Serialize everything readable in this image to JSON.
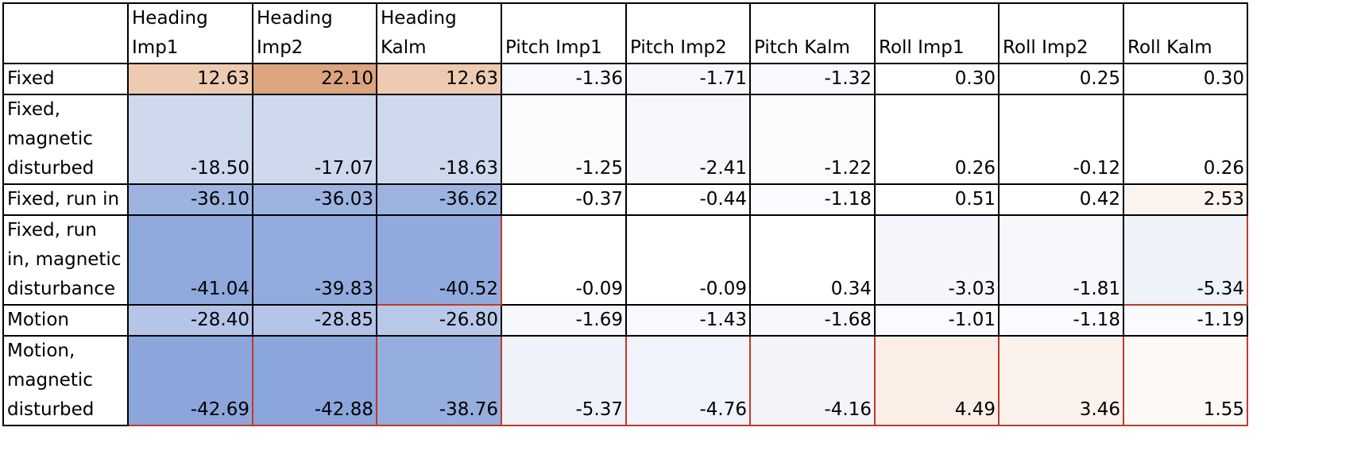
{
  "table": {
    "corner": "",
    "headers": [
      "Heading\nImp1",
      "Heading\nImp2",
      "Heading\nKalm",
      "Pitch Imp1",
      "Pitch Imp2",
      "Pitch Kalm",
      "Roll Imp1",
      "Roll Imp2",
      "Roll Kalm"
    ],
    "rows": [
      {
        "label": "Fixed",
        "cells": [
          {
            "value": "12.63",
            "color": "#EECAB0"
          },
          {
            "value": "22.10",
            "color": "#DCA57F"
          },
          {
            "value": "12.63",
            "color": "#EECAB0"
          },
          {
            "value": "-1.36",
            "color": "#F8F9FD"
          },
          {
            "value": "-1.71",
            "color": "#F7F8FC"
          },
          {
            "value": "-1.32",
            "color": "#F8F9FD"
          },
          {
            "value": "0.30",
            "color": "#FFFFFF"
          },
          {
            "value": "0.25",
            "color": "#FFFFFF"
          },
          {
            "value": "0.30",
            "color": "#FFFFFF"
          }
        ]
      },
      {
        "label": "Fixed,\nmagnetic\ndisturbed",
        "cells": [
          {
            "value": "-18.50",
            "color": "#CED9EE"
          },
          {
            "value": "-17.07",
            "color": "#CED9EE"
          },
          {
            "value": "-18.63",
            "color": "#CED9EE"
          },
          {
            "value": "-1.25",
            "color": "#FBFBFE"
          },
          {
            "value": "-2.41",
            "color": "#F7F8FC"
          },
          {
            "value": "-1.22",
            "color": "#FBFBFE"
          },
          {
            "value": "0.26",
            "color": "#FFFFFF"
          },
          {
            "value": "-0.12",
            "color": "#FFFFFF"
          },
          {
            "value": "0.26",
            "color": "#FFFFFF"
          }
        ]
      },
      {
        "label": "Fixed, run in",
        "cells": [
          {
            "value": "-36.10",
            "color": "#9EB4E0"
          },
          {
            "value": "-36.03",
            "color": "#9EB4E0"
          },
          {
            "value": "-36.62",
            "color": "#9DB3DF"
          },
          {
            "value": "-0.37",
            "color": "#FFFFFF"
          },
          {
            "value": "-0.44",
            "color": "#FFFFFF"
          },
          {
            "value": "-1.18",
            "color": "#FAFBFE"
          },
          {
            "value": "0.51",
            "color": "#FFFFFF"
          },
          {
            "value": "0.42",
            "color": "#FFFFFF"
          },
          {
            "value": "2.53",
            "color": "#FCF4EF"
          }
        ]
      },
      {
        "label": "Fixed, run\nin, magnetic\ndisturbance",
        "cells": [
          {
            "value": "-41.04",
            "color": "#8FA9DD"
          },
          {
            "value": "-39.83",
            "color": "#92ABDD"
          },
          {
            "value": "-40.52",
            "color": "#90AADD",
            "cf": true
          },
          {
            "value": "-0.09",
            "color": "#FFFFFF"
          },
          {
            "value": "-0.09",
            "color": "#FFFFFF"
          },
          {
            "value": "0.34",
            "color": "#FFFFFF"
          },
          {
            "value": "-3.03",
            "color": "#F4F6FB"
          },
          {
            "value": "-1.81",
            "color": "#F7F8FC"
          },
          {
            "value": "-5.34",
            "color": "#EFF2F9",
            "cf": true
          }
        ]
      },
      {
        "label": "Motion",
        "cells": [
          {
            "value": "-28.40",
            "color": "#B4C5E8"
          },
          {
            "value": "-28.85",
            "color": "#B3C4E8"
          },
          {
            "value": "-26.80",
            "color": "#B8C8E9"
          },
          {
            "value": "-1.69",
            "color": "#F7F8FC"
          },
          {
            "value": "-1.43",
            "color": "#F8F9FD"
          },
          {
            "value": "-1.68",
            "color": "#F7F8FC"
          },
          {
            "value": "-1.01",
            "color": "#FAFBFE"
          },
          {
            "value": "-1.18",
            "color": "#FAFBFE"
          },
          {
            "value": "-1.19",
            "color": "#FAFBFE"
          }
        ]
      },
      {
        "label": "Motion,\nmagnetic\ndisturbed",
        "cells": [
          {
            "value": "-42.69",
            "color": "#8CA6DC",
            "cf": true
          },
          {
            "value": "-42.88",
            "color": "#8BA6DC",
            "cf": true
          },
          {
            "value": "-38.76",
            "color": "#95AEDE",
            "cf": true
          },
          {
            "value": "-5.37",
            "color": "#EFF2F9",
            "cf": true
          },
          {
            "value": "-4.76",
            "color": "#F0F3FA",
            "cf": true
          },
          {
            "value": "-4.16",
            "color": "#F2F4FA",
            "cf": true
          },
          {
            "value": "4.49",
            "color": "#FBEEE6",
            "cf": true
          },
          {
            "value": "3.46",
            "color": "#FCF2EC",
            "cf": true
          },
          {
            "value": "1.55",
            "color": "#FEF9F6",
            "cf": true
          }
        ]
      }
    ]
  }
}
